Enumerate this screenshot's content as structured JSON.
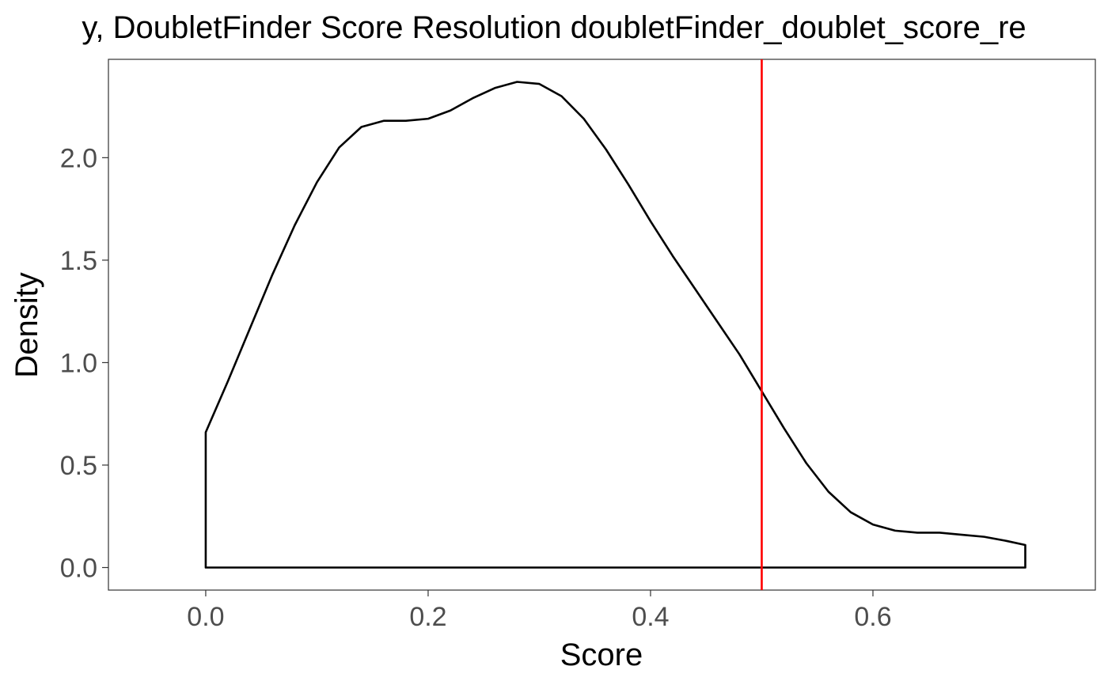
{
  "chart_data": {
    "type": "area",
    "title": "y, DoubletFinder Score Resolution doubletFinder_doublet_score_re",
    "xlabel": "Score",
    "ylabel": "Density",
    "xlim": [
      -0.0875,
      0.8
    ],
    "ylim": [
      -0.11,
      2.48
    ],
    "x_ticks": [
      0.0,
      0.2,
      0.4,
      0.6
    ],
    "x_tick_labels": [
      "0.0",
      "0.2",
      "0.4",
      "0.6"
    ],
    "y_ticks": [
      0.0,
      0.5,
      1.0,
      1.5,
      2.0
    ],
    "y_tick_labels": [
      "0.0",
      "0.5",
      "1.0",
      "1.5",
      "2.0"
    ],
    "grid": false,
    "series": [
      {
        "x": [
          0.0,
          0.02,
          0.04,
          0.06,
          0.08,
          0.1,
          0.12,
          0.14,
          0.16,
          0.18,
          0.2,
          0.22,
          0.24,
          0.26,
          0.28,
          0.3,
          0.32,
          0.34,
          0.36,
          0.38,
          0.4,
          0.42,
          0.44,
          0.46,
          0.48,
          0.5,
          0.52,
          0.54,
          0.56,
          0.58,
          0.6,
          0.62,
          0.64,
          0.66,
          0.68,
          0.7,
          0.72,
          0.737
        ],
        "y": [
          0.66,
          0.91,
          1.17,
          1.43,
          1.67,
          1.88,
          2.05,
          2.15,
          2.18,
          2.18,
          2.19,
          2.23,
          2.29,
          2.34,
          2.37,
          2.36,
          2.3,
          2.19,
          2.04,
          1.87,
          1.69,
          1.52,
          1.36,
          1.2,
          1.04,
          0.86,
          0.68,
          0.51,
          0.37,
          0.27,
          0.21,
          0.18,
          0.17,
          0.17,
          0.16,
          0.15,
          0.13,
          0.11
        ],
        "color": "#000000"
      }
    ],
    "vline": {
      "x": 0.5,
      "color": "#ff0000"
    }
  }
}
